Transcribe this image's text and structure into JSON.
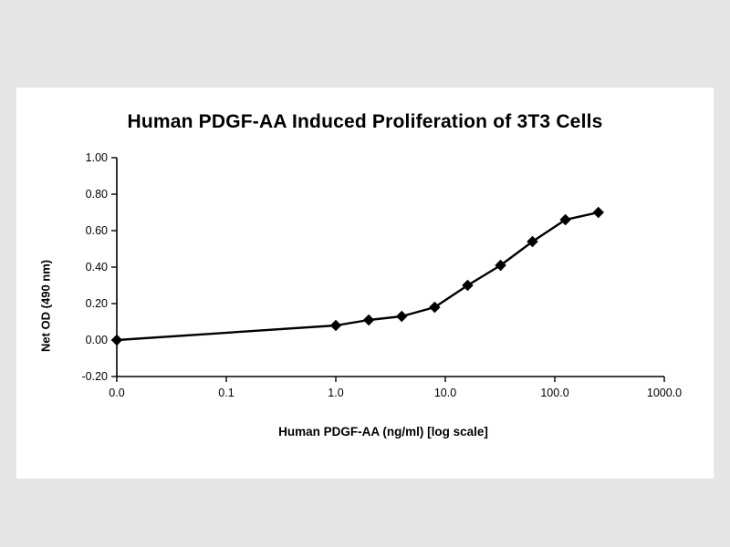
{
  "page": {
    "background_color": "#e6e6e6",
    "panel_color": "#ffffff"
  },
  "chart_data": {
    "type": "line",
    "title": "Human PDGF-AA Induced Proliferation of 3T3 Cells",
    "xlabel": "Human PDGF-AA (ng/ml) [log scale]",
    "ylabel": "Net OD (490 nm)",
    "x_scale": "log",
    "zero_point_at_axis_start": true,
    "x": [
      0,
      1,
      2,
      4,
      8,
      16,
      32,
      62.5,
      125,
      250
    ],
    "y": [
      0.0,
      0.08,
      0.11,
      0.13,
      0.18,
      0.3,
      0.41,
      0.54,
      0.66,
      0.7
    ],
    "x_tick_labels": [
      "0.0",
      "0.1",
      "1.0",
      "10.0",
      "100.0",
      "1000.0"
    ],
    "y_tick_values": [
      1.0,
      0.8,
      0.6,
      0.4,
      0.2,
      0.0,
      -0.2
    ],
    "y_tick_labels": [
      "1.00",
      "0.80",
      "0.60",
      "0.40",
      "0.20",
      "0.00",
      "-0.20"
    ],
    "ylim": [
      -0.2,
      1.0
    ],
    "xlim_log": [
      0.01,
      1000
    ],
    "grid": false,
    "legend": false,
    "line_color": "#000000",
    "marker": "diamond",
    "marker_color": "#000000",
    "axis_color": "#000000"
  }
}
